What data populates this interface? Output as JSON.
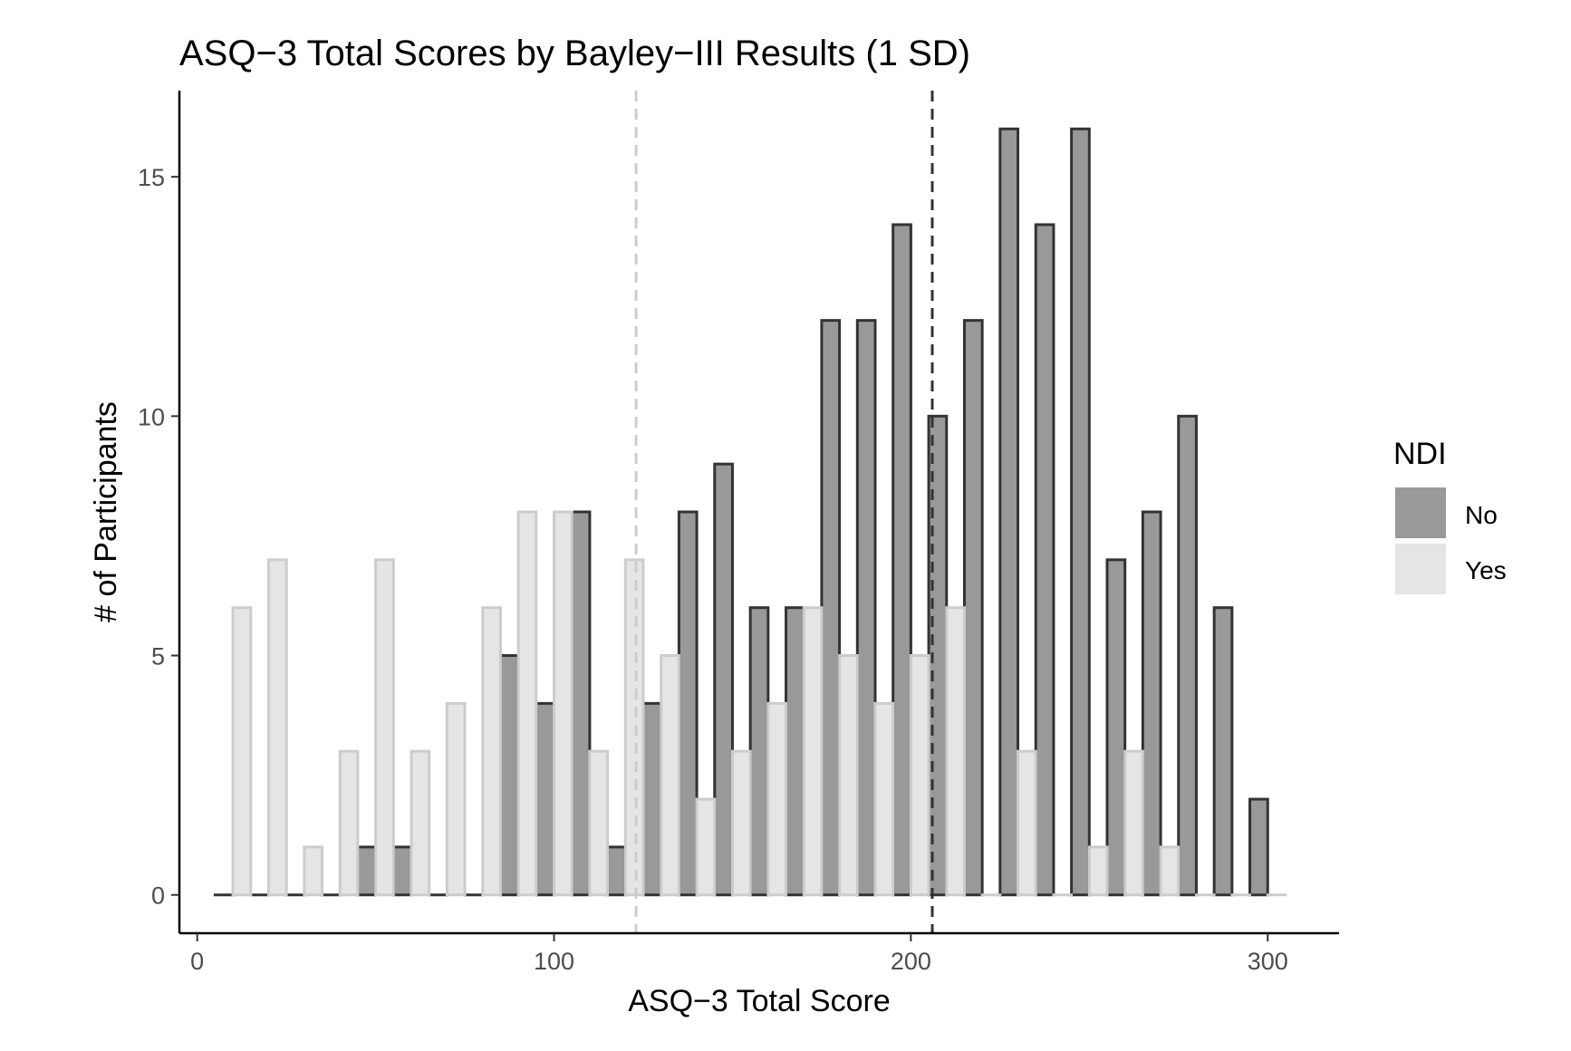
{
  "chart_data": {
    "type": "bar",
    "title": "ASQ−3 Total Scores by Bayley−III Results (1 SD)",
    "xlabel": "ASQ−3 Total Score",
    "ylabel": "# of Participants",
    "xlim": [
      -5,
      320
    ],
    "ylim": [
      -0.8,
      16.8
    ],
    "x_ticks": [
      0,
      100,
      200,
      300
    ],
    "y_ticks": [
      0,
      5,
      10,
      15
    ],
    "grid": false,
    "legend": {
      "title": "NDI",
      "position": "right"
    },
    "bin_width": 10,
    "bin_centers": [
      10,
      20,
      30,
      40,
      50,
      60,
      70,
      80,
      90,
      100,
      110,
      120,
      130,
      140,
      150,
      160,
      170,
      180,
      190,
      200,
      210,
      220,
      230,
      240,
      250,
      260,
      270,
      280,
      290,
      300
    ],
    "series": [
      {
        "name": "No",
        "color": "#999999",
        "values": [
          0,
          0,
          0,
          0,
          1,
          1,
          0,
          0,
          5,
          4,
          8,
          1,
          4,
          8,
          9,
          6,
          6,
          12,
          12,
          14,
          10,
          12,
          16,
          14,
          16,
          7,
          8,
          10,
          6,
          2
        ]
      },
      {
        "name": "Yes",
        "color": "#e5e5e5",
        "values": [
          6,
          7,
          1,
          3,
          7,
          3,
          4,
          6,
          8,
          8,
          3,
          7,
          5,
          2,
          3,
          4,
          6,
          5,
          4,
          5,
          6,
          0,
          3,
          0,
          1,
          3,
          1,
          0,
          0,
          0
        ]
      }
    ],
    "reference_lines": [
      {
        "series": "Yes",
        "x": 123
      },
      {
        "series": "No",
        "x": 206
      }
    ]
  }
}
